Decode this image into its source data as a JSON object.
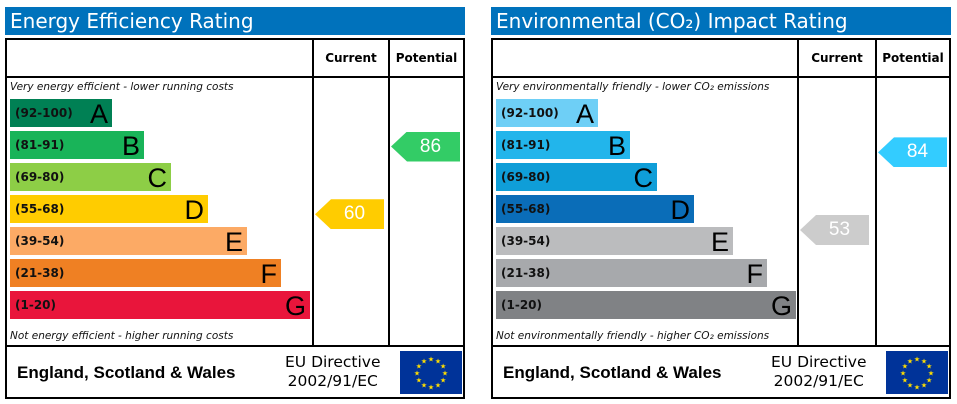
{
  "panels": [
    {
      "title": "Energy Efficiency Rating",
      "header_current": "Current",
      "header_potential": "Potential",
      "top_note": "Very energy efficient - lower running costs",
      "bottom_note": "Not energy efficient - higher running costs",
      "bands": [
        {
          "range": "(92-100)",
          "letter": "A",
          "min": 92,
          "max": 100,
          "color": "#008054"
        },
        {
          "range": "(81-91)",
          "letter": "B",
          "min": 81,
          "max": 91,
          "color": "#19b459"
        },
        {
          "range": "(69-80)",
          "letter": "C",
          "min": 69,
          "max": 80,
          "color": "#8dce46"
        },
        {
          "range": "(55-68)",
          "letter": "D",
          "min": 55,
          "max": 68,
          "color": "#ffcc00"
        },
        {
          "range": "(39-54)",
          "letter": "E",
          "min": 39,
          "max": 54,
          "color": "#fcaa65"
        },
        {
          "range": "(21-38)",
          "letter": "F",
          "min": 21,
          "max": 38,
          "color": "#ef8023"
        },
        {
          "range": "(1-20)",
          "letter": "G",
          "min": 1,
          "max": 20,
          "color": "#e9153b"
        }
      ],
      "current": {
        "value": 60,
        "color": "#ffcc00"
      },
      "potential": {
        "value": 86,
        "color": "#33cc66"
      },
      "footer_region": "England, Scotland & Wales",
      "footer_directive_1": "EU Directive",
      "footer_directive_2": "2002/91/EC"
    },
    {
      "title": "Environmental (CO₂) Impact Rating",
      "header_current": "Current",
      "header_potential": "Potential",
      "top_note": "Very environmentally friendly - lower CO₂ emissions",
      "bottom_note": "Not environmentally friendly - higher CO₂ emissions",
      "bands": [
        {
          "range": "(92-100)",
          "letter": "A",
          "min": 92,
          "max": 100,
          "color": "#6ecff6"
        },
        {
          "range": "(81-91)",
          "letter": "B",
          "min": 81,
          "max": 91,
          "color": "#22b5eb"
        },
        {
          "range": "(69-80)",
          "letter": "C",
          "min": 69,
          "max": 80,
          "color": "#0f9ed8"
        },
        {
          "range": "(55-68)",
          "letter": "D",
          "min": 55,
          "max": 68,
          "color": "#0a6db8"
        },
        {
          "range": "(39-54)",
          "letter": "E",
          "min": 39,
          "max": 54,
          "color": "#bbbcbe"
        },
        {
          "range": "(21-38)",
          "letter": "F",
          "min": 21,
          "max": 38,
          "color": "#a7a9ac"
        },
        {
          "range": "(1-20)",
          "letter": "G",
          "min": 1,
          "max": 20,
          "color": "#808285"
        }
      ],
      "current": {
        "value": 53,
        "color": "#cccccc"
      },
      "potential": {
        "value": 84,
        "color": "#33ccff"
      },
      "footer_region": "England, Scotland & Wales",
      "footer_directive_1": "EU Directive",
      "footer_directive_2": "2002/91/EC"
    }
  ],
  "chart_data": [
    {
      "type": "bar",
      "title": "Energy Efficiency Rating",
      "categories": [
        "A",
        "B",
        "C",
        "D",
        "E",
        "F",
        "G"
      ],
      "ranges": [
        "92-100",
        "81-91",
        "69-80",
        "55-68",
        "39-54",
        "21-38",
        "1-20"
      ],
      "current": 60,
      "potential": 86
    },
    {
      "type": "bar",
      "title": "Environmental (CO₂) Impact Rating",
      "categories": [
        "A",
        "B",
        "C",
        "D",
        "E",
        "F",
        "G"
      ],
      "ranges": [
        "92-100",
        "81-91",
        "69-80",
        "55-68",
        "39-54",
        "21-38",
        "1-20"
      ],
      "current": 53,
      "potential": 84
    }
  ]
}
